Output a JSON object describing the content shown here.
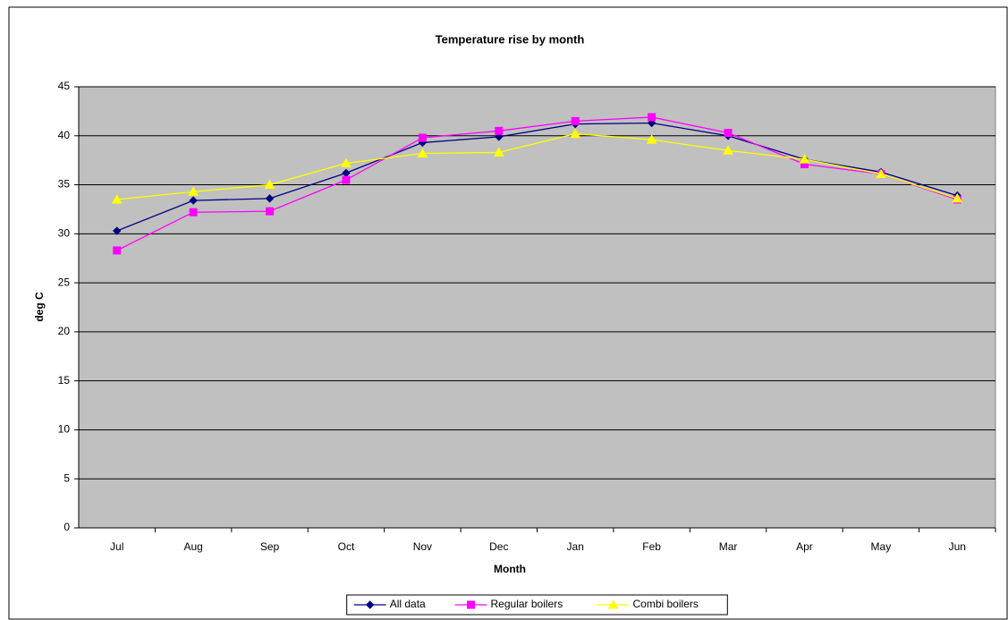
{
  "chart_data": {
    "type": "line",
    "title": "Temperature rise by month",
    "x_label": "Month",
    "y_label": "deg C",
    "categories": [
      "Jul",
      "Aug",
      "Sep",
      "Oct",
      "Nov",
      "Dec",
      "Jan",
      "Feb",
      "Mar",
      "Apr",
      "May",
      "Jun"
    ],
    "series": [
      {
        "name": "All data",
        "color": "#000080",
        "marker": "diamond",
        "values": [
          30.3,
          33.4,
          33.6,
          36.2,
          39.3,
          39.9,
          41.2,
          41.3,
          40.0,
          37.6,
          36.3,
          33.9
        ]
      },
      {
        "name": "Regular boilers",
        "color": "#ff00ff",
        "marker": "square",
        "values": [
          28.3,
          32.2,
          32.3,
          35.5,
          39.8,
          40.5,
          41.5,
          41.9,
          40.3,
          37.1,
          36.1,
          33.5
        ]
      },
      {
        "name": "Combi boilers",
        "color": "#ffff00",
        "marker": "triangle",
        "values": [
          33.5,
          34.3,
          35.0,
          37.2,
          38.2,
          38.3,
          40.2,
          39.6,
          38.5,
          37.6,
          36.1,
          33.6
        ]
      }
    ],
    "ylim": [
      0,
      45
    ],
    "yticks": [
      0,
      5,
      10,
      15,
      20,
      25,
      30,
      35,
      40,
      45
    ],
    "grid": true,
    "legend": "bottom"
  }
}
